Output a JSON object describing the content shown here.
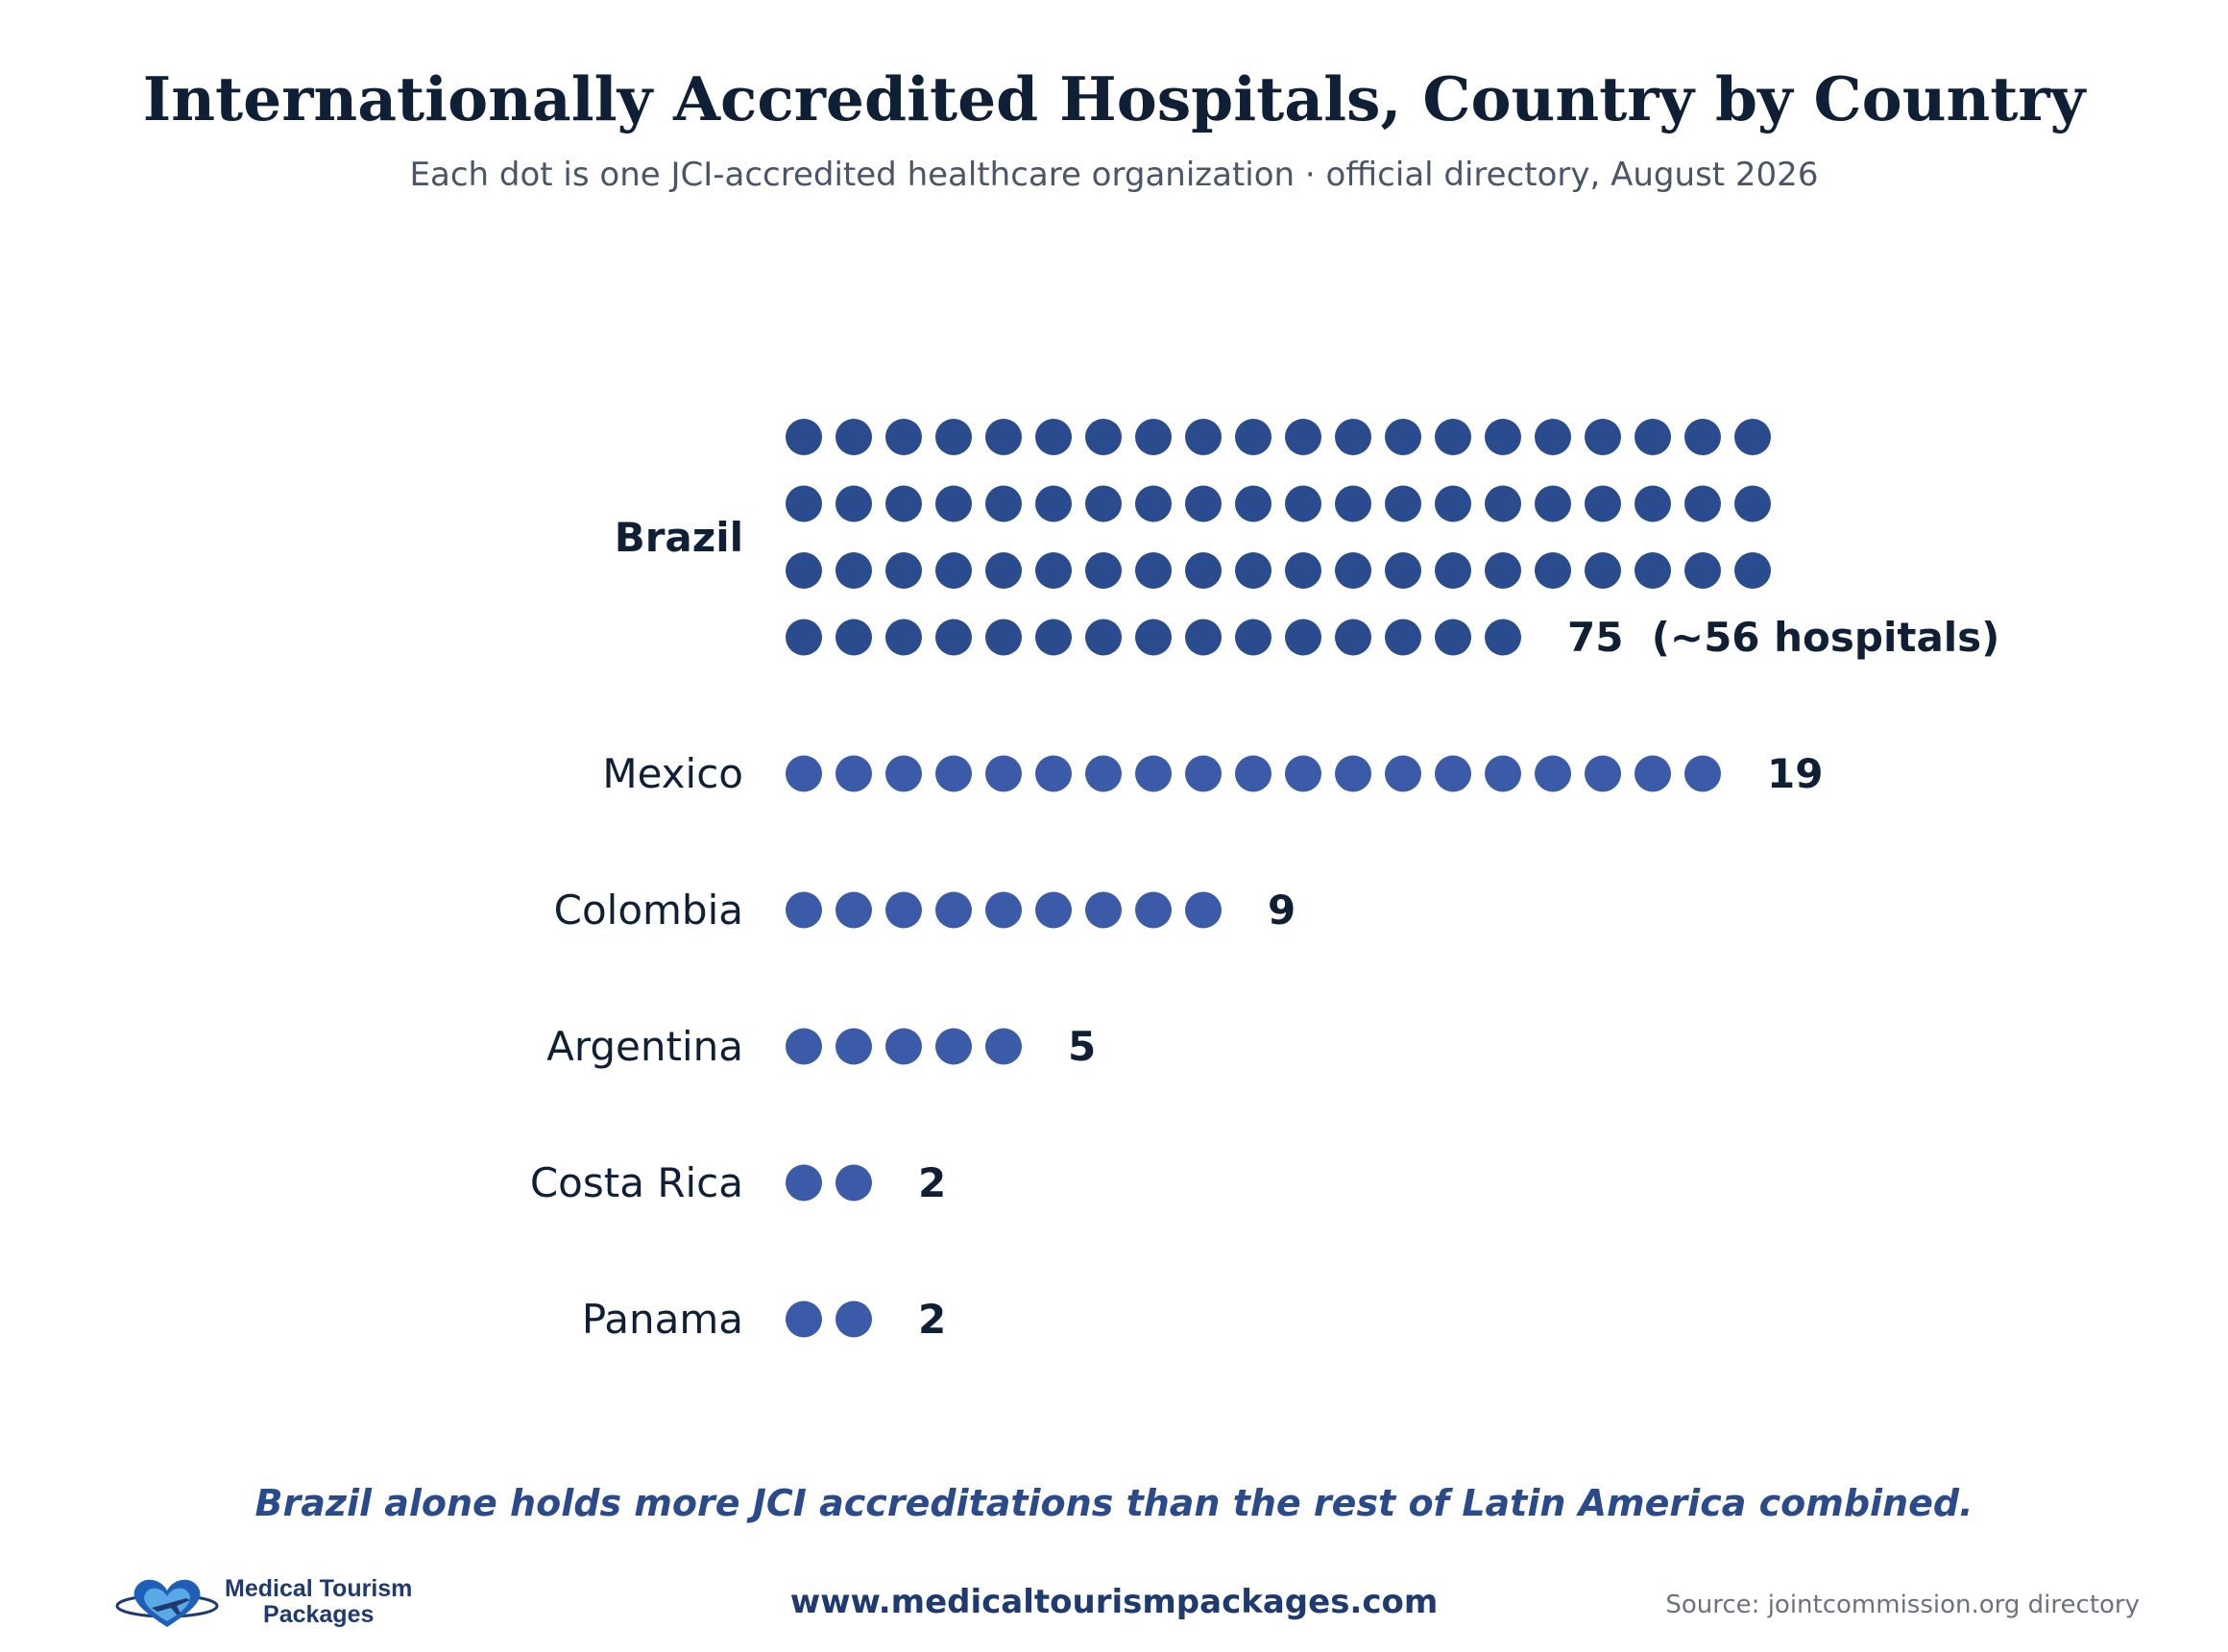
{
  "title": "Internationally Accredited Hospitals, Country by Country",
  "subtitle": "Each dot is one JCI-accredited healthcare organization · official directory, August 2026",
  "takeaway": "Brazil alone holds more JCI accreditations than the rest of Latin America combined.",
  "footer": {
    "logo_line1": "Medical Tourism",
    "logo_line2": "Packages",
    "website": "www.medicaltourismpackages.com",
    "source": "Source: jointcommission.org directory"
  },
  "colors": {
    "highlight_dot": "#2a4b8d",
    "other_dot": "#3b5ba8",
    "text": "#0f1f35",
    "accent": "#2a4a8c"
  },
  "chart_data": {
    "type": "dot-matrix",
    "unit": "one dot = one JCI-accredited healthcare organization",
    "categories": [
      "Brazil",
      "Mexico",
      "Colombia",
      "Argentina",
      "Costa Rica",
      "Panama"
    ],
    "values": [
      75,
      19,
      9,
      5,
      2,
      2
    ],
    "highlight": "Brazil",
    "dots_per_row": 20,
    "value_labels": [
      "75  (~56 hospitals)",
      "19",
      "9",
      "5",
      "2",
      "2"
    ]
  }
}
